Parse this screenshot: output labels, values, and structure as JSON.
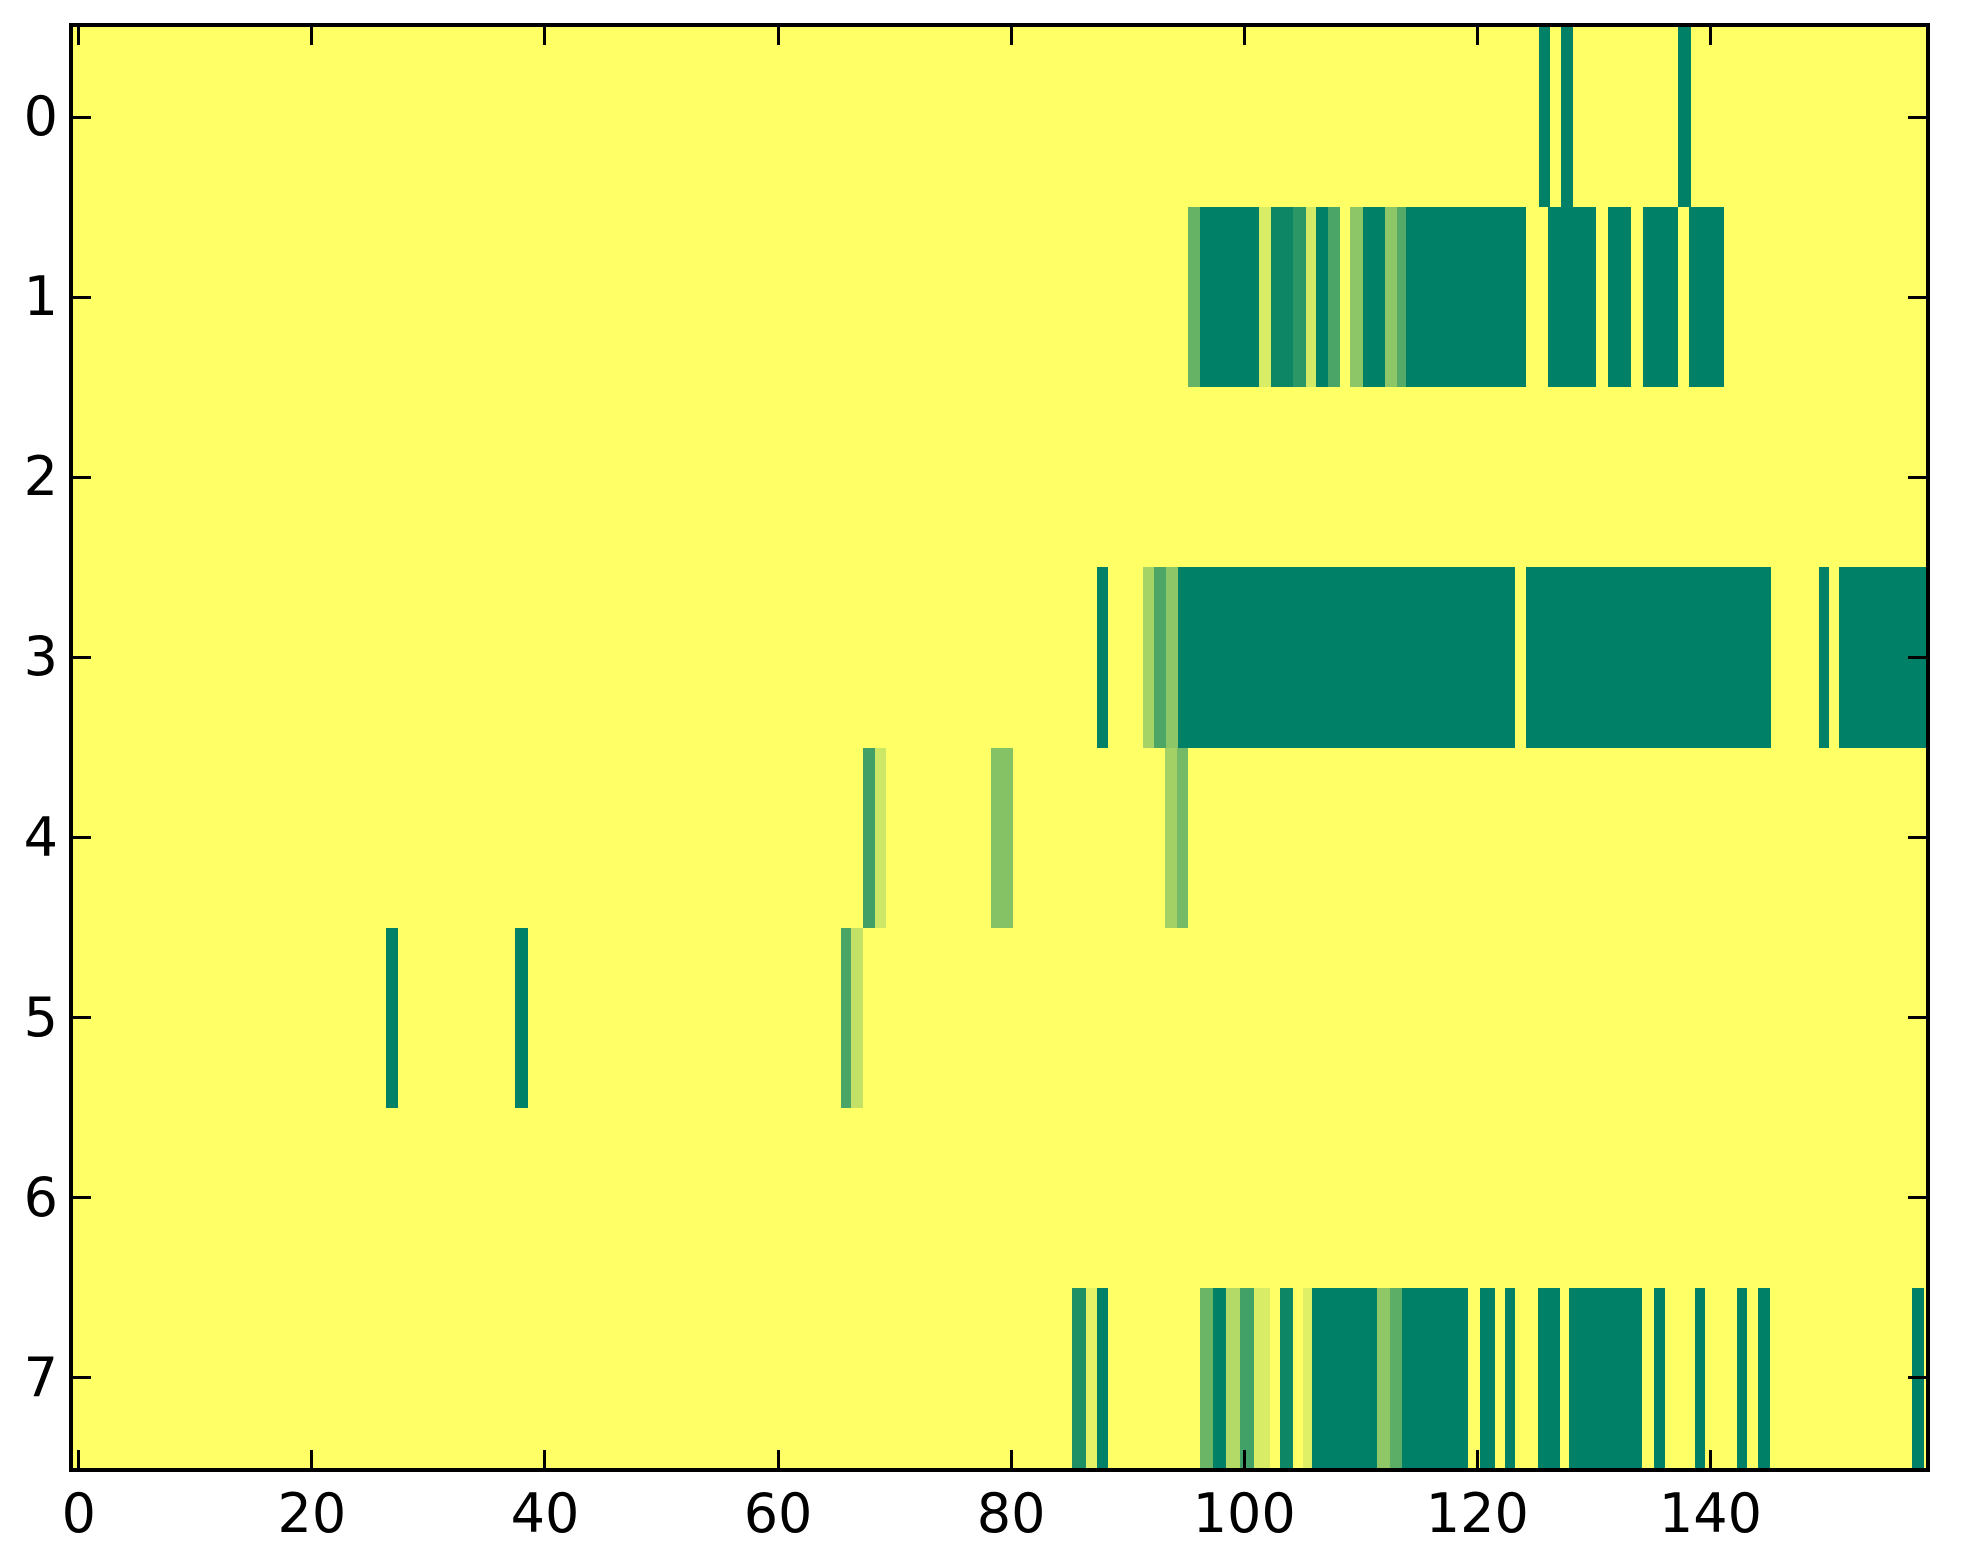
{
  "figure": {
    "background": "#ffffff",
    "plot_background": "#ffff66",
    "frame_color": "#000000",
    "tick_color": "#000000",
    "label_color": "#000000"
  },
  "chart_data": {
    "type": "heatmap",
    "title": "",
    "xlabel": "",
    "ylabel": "",
    "grid": false,
    "legend": "none",
    "colormap": "summer",
    "colormap_endpoints": {
      "low_value_color": "#008066",
      "high_value_color": "#ffff66"
    },
    "background_value": 1.0,
    "x_axis": {
      "range": [
        -0.5,
        158.5
      ],
      "tick_values": [
        0,
        20,
        40,
        60,
        80,
        100,
        120,
        140
      ],
      "tick_labels": [
        "0",
        "20",
        "40",
        "60",
        "80",
        "100",
        "120",
        "140"
      ]
    },
    "y_axis": {
      "range": [
        -0.5,
        7.5
      ],
      "tick_values": [
        0,
        1,
        2,
        3,
        4,
        5,
        6,
        7
      ],
      "tick_labels": [
        "0",
        "1",
        "2",
        "3",
        "4",
        "5",
        "6",
        "7"
      ]
    },
    "segment_format": [
      "x_start",
      "x_end",
      "colormap_value_0_dark_to_1_yellow"
    ],
    "rows": [
      {
        "row": 0,
        "segments": [
          [
            125.3,
            126.2,
            0
          ],
          [
            127.2,
            128.2,
            0
          ],
          [
            137.2,
            138.3,
            0
          ]
        ]
      },
      {
        "row": 1,
        "segments": [
          [
            95.2,
            96.2,
            0.4
          ],
          [
            96.2,
            101.3,
            0
          ],
          [
            101.3,
            102.3,
            0.85
          ],
          [
            102.3,
            104.2,
            0.05
          ],
          [
            104.2,
            105.3,
            0.17
          ],
          [
            105.3,
            106.2,
            0.83
          ],
          [
            106.2,
            107.2,
            0
          ],
          [
            107.2,
            108.2,
            0.29
          ],
          [
            109.1,
            110.2,
            0.55
          ],
          [
            110.2,
            112.1,
            0
          ],
          [
            112.1,
            113.1,
            0.55
          ],
          [
            113.1,
            113.9,
            0.33
          ],
          [
            113.9,
            124.2,
            0
          ],
          [
            126.1,
            130.2,
            0
          ],
          [
            131.2,
            133.2,
            0
          ],
          [
            134.2,
            137.2,
            0
          ],
          [
            138.2,
            141.2,
            0
          ]
        ]
      },
      {
        "row": 2,
        "segments": []
      },
      {
        "row": 3,
        "segments": [
          [
            87.4,
            88.3,
            0
          ],
          [
            91.3,
            92.3,
            0.65
          ],
          [
            92.3,
            93.3,
            0.3
          ],
          [
            93.3,
            94.3,
            0.55
          ],
          [
            94.3,
            123.2,
            0
          ],
          [
            124.2,
            145.2,
            0
          ],
          [
            149.3,
            150.2,
            0
          ],
          [
            151.0,
            158.5,
            0
          ]
        ]
      },
      {
        "row": 4,
        "segments": [
          [
            67.3,
            68.3,
            0.25
          ],
          [
            68.3,
            69.3,
            0.8
          ],
          [
            78.3,
            80.2,
            0.52
          ],
          [
            93.2,
            94.2,
            0.64
          ],
          [
            94.2,
            95.2,
            0.45
          ]
        ]
      },
      {
        "row": 5,
        "segments": [
          [
            26.4,
            27.4,
            0
          ],
          [
            37.4,
            38.5,
            0
          ],
          [
            65.4,
            66.3,
            0.29
          ],
          [
            66.3,
            67.3,
            0.76
          ]
        ]
      },
      {
        "row": 6,
        "segments": []
      },
      {
        "row": 7,
        "segments": [
          [
            85.2,
            86.4,
            0.12
          ],
          [
            86.4,
            87.4,
            0.9
          ],
          [
            87.4,
            88.3,
            0
          ],
          [
            96.2,
            97.3,
            0.42
          ],
          [
            97.3,
            98.4,
            0
          ],
          [
            98.4,
            99.6,
            0.7
          ],
          [
            99.6,
            100.8,
            0.26
          ],
          [
            100.8,
            102.2,
            0.85
          ],
          [
            103.1,
            104.2,
            0.05
          ],
          [
            105.0,
            105.8,
            0.88
          ],
          [
            105.8,
            111.4,
            0
          ],
          [
            111.4,
            112.5,
            0.56
          ],
          [
            112.5,
            113.5,
            0.36
          ],
          [
            113.5,
            119.2,
            0
          ],
          [
            120.2,
            121.5,
            0
          ],
          [
            122.4,
            123.2,
            0
          ],
          [
            125.2,
            127.1,
            0
          ],
          [
            127.9,
            134.1,
            0
          ],
          [
            135.2,
            136.1,
            0
          ],
          [
            138.7,
            139.5,
            0
          ],
          [
            142.3,
            143.1,
            0
          ],
          [
            144.1,
            145.1,
            0
          ],
          [
            157.3,
            158.3,
            0
          ]
        ]
      }
    ]
  }
}
